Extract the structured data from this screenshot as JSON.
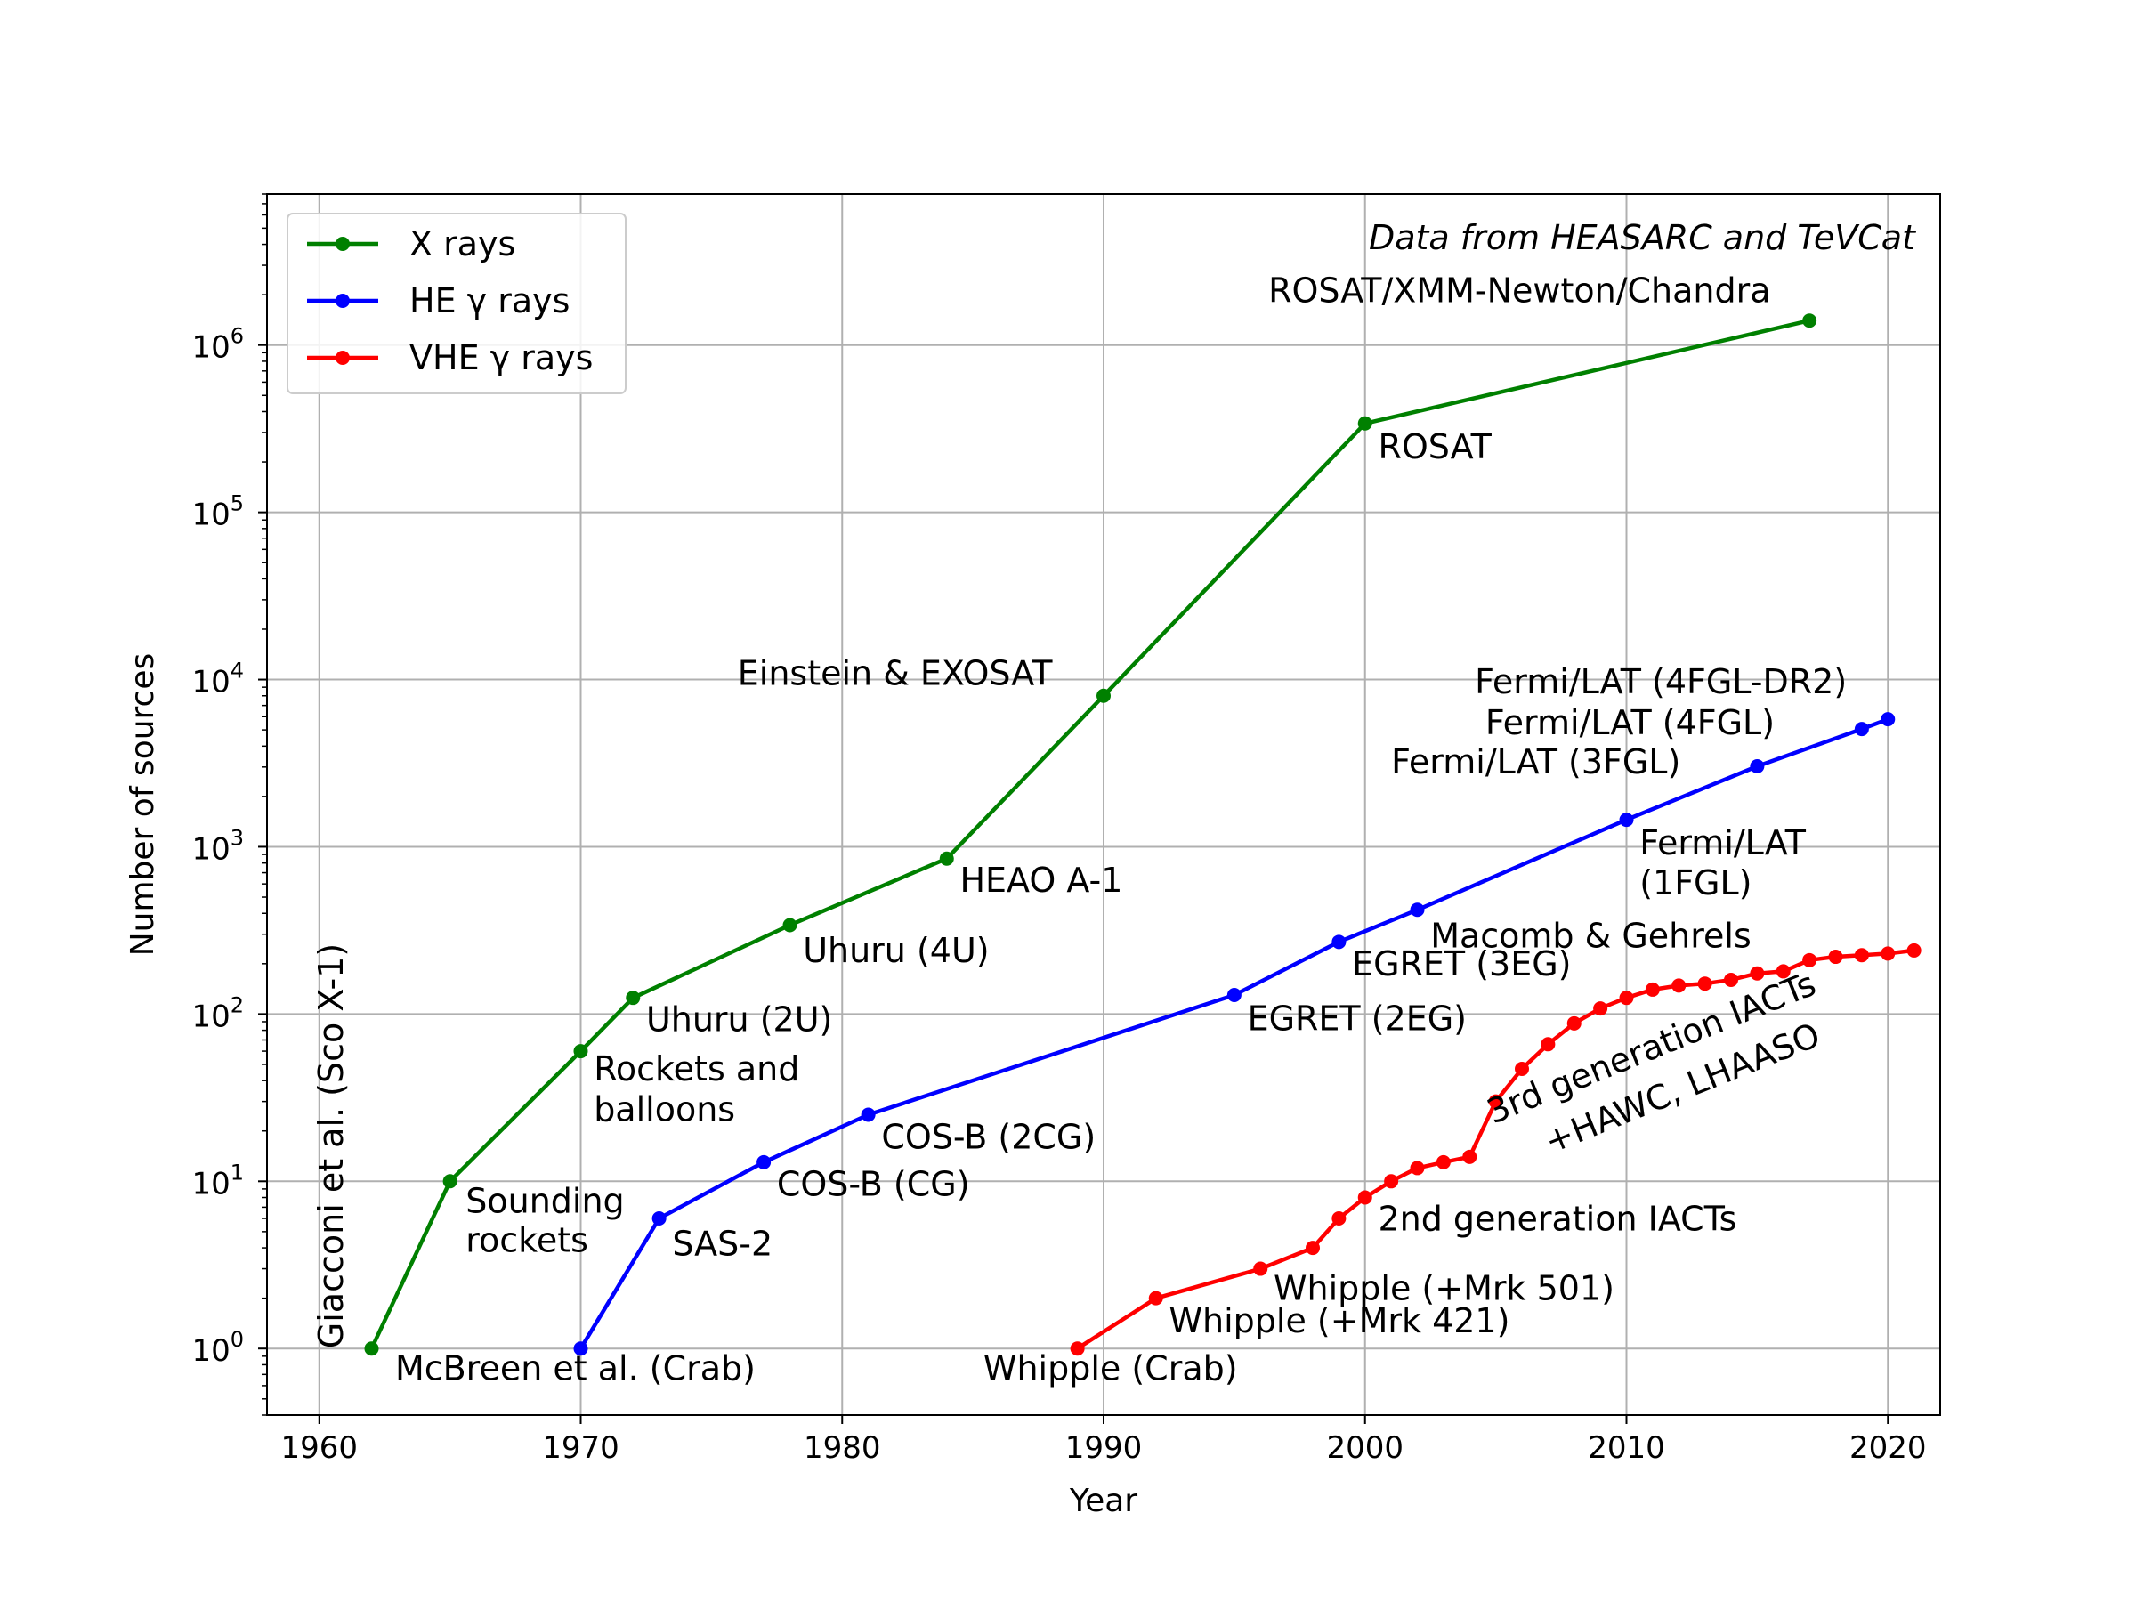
{
  "chart_data": {
    "type": "line",
    "xlabel": "Year",
    "ylabel": "Number of sources",
    "xlim": [
      1958,
      2022
    ],
    "ylim": [
      0.4,
      8000000
    ],
    "yscale": "log",
    "grid": true,
    "legend_position": "top-left",
    "xticks": [
      "1960",
      "1970",
      "1980",
      "1990",
      "2000",
      "2010",
      "2020"
    ],
    "yticks": [
      {
        "value": 1,
        "base": "10",
        "exp": "0"
      },
      {
        "value": 10,
        "base": "10",
        "exp": "1"
      },
      {
        "value": 100,
        "base": "10",
        "exp": "2"
      },
      {
        "value": 1000,
        "base": "10",
        "exp": "3"
      },
      {
        "value": 10000,
        "base": "10",
        "exp": "4"
      },
      {
        "value": 100000,
        "base": "10",
        "exp": "5"
      },
      {
        "value": 1000000,
        "base": "10",
        "exp": "6"
      }
    ],
    "credit": "Data from HEASARC and TeVCat",
    "series": [
      {
        "name": "X rays",
        "color": "#008000",
        "x": [
          1962,
          1965,
          1970,
          1972,
          1978,
          1984,
          1990,
          2000,
          2017
        ],
        "y": [
          1,
          10,
          60,
          125,
          340,
          850,
          8000,
          340000,
          1400000
        ]
      },
      {
        "name": "HE γ rays",
        "color": "#0000ff",
        "x": [
          1970,
          1973,
          1977,
          1981,
          1995,
          1999,
          2002,
          2010,
          2015,
          2019,
          2020
        ],
        "y": [
          1,
          6,
          13,
          25,
          130,
          270,
          420,
          1450,
          3030,
          5060,
          5790
        ]
      },
      {
        "name": "VHE γ rays",
        "color": "#ff0000",
        "x": [
          1989,
          1992,
          1996,
          1998,
          1999,
          2000,
          2001,
          2002,
          2003,
          2004,
          2005,
          2006,
          2007,
          2008,
          2009,
          2010,
          2011,
          2012,
          2013,
          2014,
          2015,
          2016,
          2017,
          2018,
          2019,
          2020,
          2021
        ],
        "y": [
          1,
          2,
          3,
          4,
          6,
          8,
          10,
          12,
          13,
          14,
          30,
          47,
          66,
          88,
          108,
          125,
          140,
          148,
          152,
          160,
          175,
          180,
          210,
          220,
          225,
          230,
          240
        ]
      }
    ],
    "annotations": [
      {
        "text": "Giacconi et al. (Sco X-1)",
        "x": 1960.9,
        "y": 1,
        "rotate": -90,
        "anchor": "start"
      },
      {
        "text": "McBreen et al. (Crab)",
        "x": 1962.9,
        "y": 0.65,
        "anchor": "start"
      },
      {
        "text": "Sounding",
        "x": 1965.6,
        "y": 6.5,
        "anchor": "start"
      },
      {
        "text": "rockets",
        "x": 1965.6,
        "y": 3.8,
        "anchor": "start"
      },
      {
        "text": "Rockets and",
        "x": 1970.5,
        "y": 40,
        "anchor": "start"
      },
      {
        "text": "balloons",
        "x": 1970.5,
        "y": 23,
        "anchor": "start"
      },
      {
        "text": "Uhuru (2U)",
        "x": 1972.5,
        "y": 79,
        "anchor": "start"
      },
      {
        "text": "Uhuru (4U)",
        "x": 1978.5,
        "y": 205,
        "anchor": "start"
      },
      {
        "text": "HEAO A-1",
        "x": 1984.5,
        "y": 540,
        "anchor": "start"
      },
      {
        "text": "Einstein & EXOSAT",
        "x": 1976,
        "y": 9300,
        "anchor": "start"
      },
      {
        "text": "ROSAT",
        "x": 2000.5,
        "y": 210000,
        "anchor": "start"
      },
      {
        "text": "ROSAT/XMM-Newton/Chandra",
        "x": 1996.3,
        "y": 1800000,
        "anchor": "start"
      },
      {
        "text": "SAS-2",
        "x": 1973.5,
        "y": 3.6,
        "anchor": "start"
      },
      {
        "text": "COS-B (CG)",
        "x": 1977.5,
        "y": 8.2,
        "anchor": "start"
      },
      {
        "text": "COS-B (2CG)",
        "x": 1981.5,
        "y": 15.7,
        "anchor": "start"
      },
      {
        "text": "EGRET (2EG)",
        "x": 1995.5,
        "y": 80,
        "anchor": "start"
      },
      {
        "text": "EGRET (3EG)",
        "x": 1999.5,
        "y": 170,
        "anchor": "start"
      },
      {
        "text": "Macomb & Gehrels",
        "x": 2002.5,
        "y": 250,
        "anchor": "start"
      },
      {
        "text": "Fermi/LAT",
        "x": 2010.5,
        "y": 900,
        "anchor": "start"
      },
      {
        "text": "(1FGL)",
        "x": 2010.5,
        "y": 520,
        "anchor": "start"
      },
      {
        "text": "Fermi/LAT (3FGL)",
        "x": 2001,
        "y": 2750,
        "anchor": "start"
      },
      {
        "text": "Fermi/LAT (4FGL)",
        "x": 2004.6,
        "y": 4700,
        "anchor": "start"
      },
      {
        "text": "Fermi/LAT (4FGL-DR2)",
        "x": 2004.2,
        "y": 8300,
        "anchor": "start"
      },
      {
        "text": "Whipple (Crab)",
        "x": 1985.4,
        "y": 0.65,
        "anchor": "start"
      },
      {
        "text": "Whipple (+Mrk 421)",
        "x": 1992.5,
        "y": 1.25,
        "anchor": "start"
      },
      {
        "text": "Whipple (+Mrk 501)",
        "x": 1996.5,
        "y": 1.95,
        "anchor": "start"
      },
      {
        "text": "2nd generation IACTs",
        "x": 2000.5,
        "y": 5.1,
        "anchor": "start"
      },
      {
        "text": "3rd generation IACTs",
        "x": 2004.9,
        "y": 22,
        "rotate": -22,
        "anchor": "start"
      },
      {
        "text": "+HAWC, LHAASO",
        "x": 2007.1,
        "y": 14.6,
        "rotate": -22,
        "anchor": "start"
      }
    ]
  }
}
